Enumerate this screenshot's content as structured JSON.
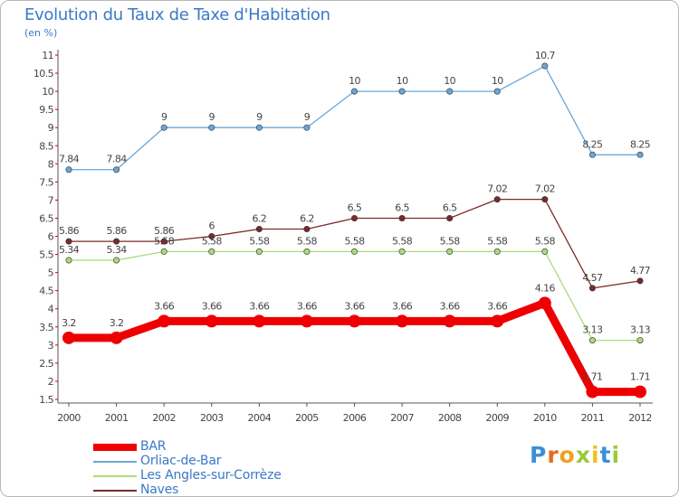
{
  "title": "Evolution du Taux de Taxe d'Habitation",
  "subtitle": "(en %)",
  "brand": {
    "letters": [
      "P",
      "r",
      "o",
      "x",
      "i",
      "t",
      "i"
    ],
    "colors": [
      "#3b8fd8",
      "#e86a1c",
      "#f0a020",
      "#9ac93a",
      "#f0c020",
      "#3b8fd8",
      "#9ac93a"
    ]
  },
  "chart_data": {
    "type": "line",
    "categories": [
      "2000",
      "2001",
      "2002",
      "2003",
      "2004",
      "2005",
      "2006",
      "2007",
      "2008",
      "2009",
      "2010",
      "2011",
      "2012"
    ],
    "ylim": [
      1.5,
      11
    ],
    "yticks": [
      "1.5",
      "2",
      "2.5",
      "3",
      "3.5",
      "4",
      "4.5",
      "5",
      "5.5",
      "6",
      "6.5",
      "7",
      "7.5",
      "8",
      "8.5",
      "9",
      "9.5",
      "10",
      "10.5",
      "11"
    ],
    "grid": false,
    "legend_position": "bottom-left",
    "series": [
      {
        "name": "BAR",
        "color": "#ee0000",
        "emphasis": true,
        "values": [
          3.2,
          3.2,
          3.66,
          3.66,
          3.66,
          3.66,
          3.66,
          3.66,
          3.66,
          3.66,
          4.16,
          1.71,
          1.71
        ],
        "labels": [
          "3.2",
          "3.2",
          "3.66",
          "3.66",
          "3.66",
          "3.66",
          "3.66",
          "3.66",
          "3.66",
          "3.66",
          "4.16",
          "1.71",
          "1.71"
        ]
      },
      {
        "name": "Orliac-de-Bar",
        "color": "#6aa6d8",
        "values": [
          7.84,
          7.84,
          9,
          9,
          9,
          9,
          10,
          10,
          10,
          10,
          10.7,
          8.25,
          8.25
        ],
        "labels": [
          "7.84",
          "7.84",
          "9",
          "9",
          "9",
          "9",
          "10",
          "10",
          "10",
          "10",
          "10.7",
          "8.25",
          "8.25"
        ]
      },
      {
        "name": "Les Angles-sur-Corrèze",
        "color": "#a8dc78",
        "values": [
          5.34,
          5.34,
          5.58,
          5.58,
          5.58,
          5.58,
          5.58,
          5.58,
          5.58,
          5.58,
          5.58,
          3.13,
          3.13
        ],
        "labels": [
          "5.34",
          "5.34",
          "5.58",
          "5.58",
          "5.58",
          "5.58",
          "5.58",
          "5.58",
          "5.58",
          "5.58",
          "5.58",
          "3.13",
          "3.13"
        ]
      },
      {
        "name": "Naves",
        "color": "#7a2a2a",
        "values": [
          5.86,
          5.86,
          5.86,
          6,
          6.2,
          6.2,
          6.5,
          6.5,
          6.5,
          7.02,
          7.02,
          4.57,
          4.77
        ],
        "labels": [
          "5.86",
          "5.86",
          "5.86",
          "6",
          "6.2",
          "6.2",
          "6.5",
          "6.5",
          "6.5",
          "7.02",
          "7.02",
          "4.57",
          "4.77"
        ]
      }
    ]
  }
}
